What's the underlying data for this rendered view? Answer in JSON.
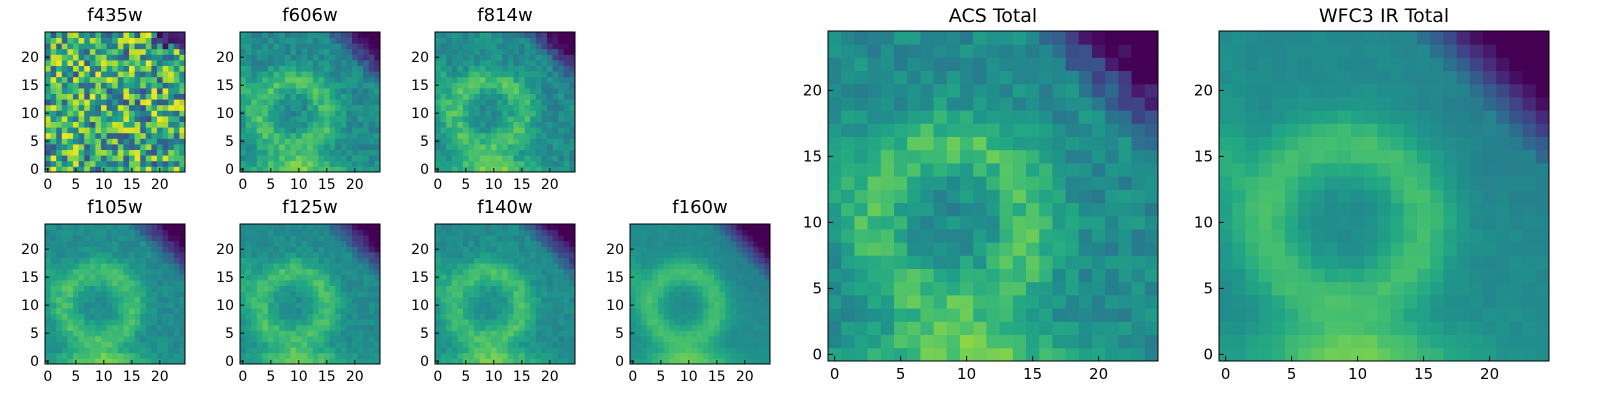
{
  "figure": {
    "panels": [
      {
        "id": "f435w",
        "title": "f435w"
      },
      {
        "id": "f606w",
        "title": "f606w"
      },
      {
        "id": "f814w",
        "title": "f814w"
      },
      {
        "id": "f105w",
        "title": "f105w"
      },
      {
        "id": "f125w",
        "title": "f125w"
      },
      {
        "id": "f140w",
        "title": "f140w"
      },
      {
        "id": "f160w",
        "title": "f160w"
      },
      {
        "id": "acs_total",
        "title": "ACS Total"
      },
      {
        "id": "wfc3_total",
        "title": "WFC3 IR Total"
      }
    ]
  },
  "chart_data": [
    {
      "type": "heatmap",
      "title": "f435w",
      "grid_size": [
        25,
        25
      ],
      "xlim": [
        0,
        24
      ],
      "ylim": [
        0,
        24
      ],
      "xticks": [
        0,
        5,
        10,
        15,
        20
      ],
      "yticks": [
        0,
        5,
        10,
        15,
        20
      ],
      "colormap": "viridis",
      "pattern": "noisy_uniform"
    },
    {
      "type": "heatmap",
      "title": "f606w",
      "grid_size": [
        25,
        25
      ],
      "xlim": [
        0,
        24
      ],
      "ylim": [
        0,
        24
      ],
      "xticks": [
        0,
        5,
        10,
        15,
        20
      ],
      "yticks": [
        0,
        5,
        10,
        15,
        20
      ],
      "colormap": "viridis",
      "pattern": "ring"
    },
    {
      "type": "heatmap",
      "title": "f814w",
      "grid_size": [
        25,
        25
      ],
      "xlim": [
        0,
        24
      ],
      "ylim": [
        0,
        24
      ],
      "xticks": [
        0,
        5,
        10,
        15,
        20
      ],
      "yticks": [
        0,
        5,
        10,
        15,
        20
      ],
      "colormap": "viridis",
      "pattern": "ring"
    },
    {
      "type": "heatmap",
      "title": "f105w",
      "grid_size": [
        25,
        25
      ],
      "xlim": [
        0,
        24
      ],
      "ylim": [
        0,
        24
      ],
      "xticks": [
        0,
        5,
        10,
        15,
        20
      ],
      "yticks": [
        0,
        5,
        10,
        15,
        20
      ],
      "colormap": "viridis",
      "pattern": "ring_dark_corner"
    },
    {
      "type": "heatmap",
      "title": "f125w",
      "grid_size": [
        25,
        25
      ],
      "xlim": [
        0,
        24
      ],
      "ylim": [
        0,
        24
      ],
      "xticks": [
        0,
        5,
        10,
        15,
        20
      ],
      "yticks": [
        0,
        5,
        10,
        15,
        20
      ],
      "colormap": "viridis",
      "pattern": "ring_dark_corner"
    },
    {
      "type": "heatmap",
      "title": "f140w",
      "grid_size": [
        25,
        25
      ],
      "xlim": [
        0,
        24
      ],
      "ylim": [
        0,
        24
      ],
      "xticks": [
        0,
        5,
        10,
        15,
        20
      ],
      "yticks": [
        0,
        5,
        10,
        15,
        20
      ],
      "colormap": "viridis",
      "pattern": "ring_dark_corner"
    },
    {
      "type": "heatmap",
      "title": "f160w",
      "grid_size": [
        25,
        25
      ],
      "xlim": [
        0,
        24
      ],
      "ylim": [
        0,
        24
      ],
      "xticks": [
        0,
        5,
        10,
        15,
        20
      ],
      "yticks": [
        0,
        5,
        10,
        15,
        20
      ],
      "colormap": "viridis",
      "pattern": "smooth_dark_corner"
    },
    {
      "type": "heatmap",
      "title": "ACS Total",
      "grid_size": [
        25,
        25
      ],
      "xlim": [
        0,
        24
      ],
      "ylim": [
        0,
        24
      ],
      "xticks": [
        0,
        5,
        10,
        15,
        20
      ],
      "yticks": [
        0,
        5,
        10,
        15,
        20
      ],
      "colormap": "viridis",
      "pattern": "ring"
    },
    {
      "type": "heatmap",
      "title": "WFC3 IR Total",
      "grid_size": [
        25,
        25
      ],
      "xlim": [
        0,
        24
      ],
      "ylim": [
        0,
        24
      ],
      "xticks": [
        0,
        5,
        10,
        15,
        20
      ],
      "yticks": [
        0,
        5,
        10,
        15,
        20
      ],
      "colormap": "viridis",
      "pattern": "smooth_dark_corner"
    }
  ]
}
